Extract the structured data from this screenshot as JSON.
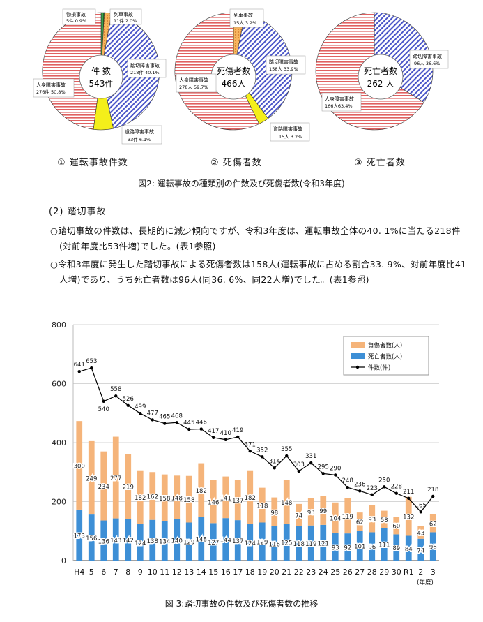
{
  "pies": [
    {
      "center_label": [
        "件 数",
        "543件"
      ],
      "title": "①  運転事故件数",
      "labels": [
        {
          "name": "物損事故",
          "value": "5件  0.9%"
        },
        {
          "name": "列車事故",
          "value": "11件  2.0%"
        },
        {
          "name": "踏切障害事故",
          "value": "218件 40.1%"
        },
        {
          "name": "道路障害事故",
          "value": "33件 6.1%"
        },
        {
          "name": "人身障害事故",
          "value": "276件 50.8%"
        }
      ],
      "slices": [
        0.9,
        2.0,
        40.1,
        6.1,
        50.8
      ]
    },
    {
      "center_label": [
        "死傷者数",
        "466人"
      ],
      "title": "②  死傷者数",
      "labels": [
        {
          "name": "列車事故",
          "value": "15人  3.2%"
        },
        {
          "name": "踏切障害事故",
          "value": "158人  33.9%"
        },
        {
          "name": "道路障害事故",
          "value": "15人  3.2%"
        },
        {
          "name": "人身障害事故",
          "value": "278人  59.7%"
        }
      ],
      "slices": [
        3.2,
        33.9,
        3.2,
        59.7
      ]
    },
    {
      "center_label": [
        "死亡者数",
        "262 人"
      ],
      "title": "③  死亡者数",
      "labels": [
        {
          "name": "踏切障害事故",
          "value": "96人  36.6%"
        },
        {
          "name": "人身障害事故",
          "value": "166人63.4%"
        }
      ],
      "slices": [
        36.6,
        63.4
      ]
    }
  ],
  "fig2_caption": "図2:  運転事故の種類別の件数及び死傷者数(令和3年度)",
  "section_heading": "(2) 踏切事故",
  "paragraph1": "○踏切事故の件数は、長期的に減少傾向ですが、令和3年度は、運転事故全体の40. 1%に当たる218件(対前年度比53件増)でした。(表1参照)",
  "paragraph2": "○令和3年度に発生した踏切事故による死傷者数は158人(運転事故に占める割合33. 9%、対前年度比41人増)であり、うち死亡者数は96人(同36. 6%、同22人増)でした。(表1参照)",
  "chart_data": {
    "type": "bar",
    "categories": [
      "H4",
      "5",
      "6",
      "7",
      "8",
      "9",
      "10",
      "11",
      "12",
      "13",
      "14",
      "15",
      "16",
      "17",
      "18",
      "19",
      "20",
      "21",
      "22",
      "23",
      "24",
      "25",
      "26",
      "27",
      "28",
      "29",
      "30",
      "R1",
      "2",
      "3"
    ],
    "x_unit": "(年度)",
    "ylim": [
      0,
      800
    ],
    "yticks": [
      "0",
      "200",
      "400",
      "600",
      "800"
    ],
    "grid": true,
    "legend_position": "top-right",
    "series": [
      {
        "name": "死亡者数(人)",
        "kind": "stacked-bar",
        "color": "#3d8fd6",
        "values": [
          173,
          156,
          136,
          143,
          142,
          124,
          138,
          134,
          140,
          129,
          148,
          127,
          144,
          137,
          124,
          129,
          116,
          125,
          118,
          119,
          121,
          93,
          92,
          101,
          96,
          111,
          89,
          84,
          74,
          96
        ]
      },
      {
        "name": "負傷者数(人)",
        "kind": "stacked-bar",
        "color": "#f5b47a",
        "values": [
          300,
          249,
          234,
          277,
          219,
          182,
          162,
          158,
          148,
          158,
          182,
          146,
          141,
          137,
          182,
          118,
          98,
          148,
          74,
          93,
          99,
          104,
          119,
          62,
          93,
          58,
          60,
          132,
          43,
          62
        ]
      },
      {
        "name": "件数(件)",
        "kind": "line",
        "color": "#000000",
        "values": [
          641,
          653,
          540,
          558,
          526,
          499,
          477,
          465,
          468,
          445,
          446,
          417,
          410,
          419,
          371,
          352,
          314,
          355,
          303,
          331,
          295,
          290,
          248,
          236,
          223,
          250,
          228,
          211,
          165,
          218
        ]
      }
    ]
  },
  "fig3_caption": "図 3:踏切事故の件数及び死傷者数の推移"
}
